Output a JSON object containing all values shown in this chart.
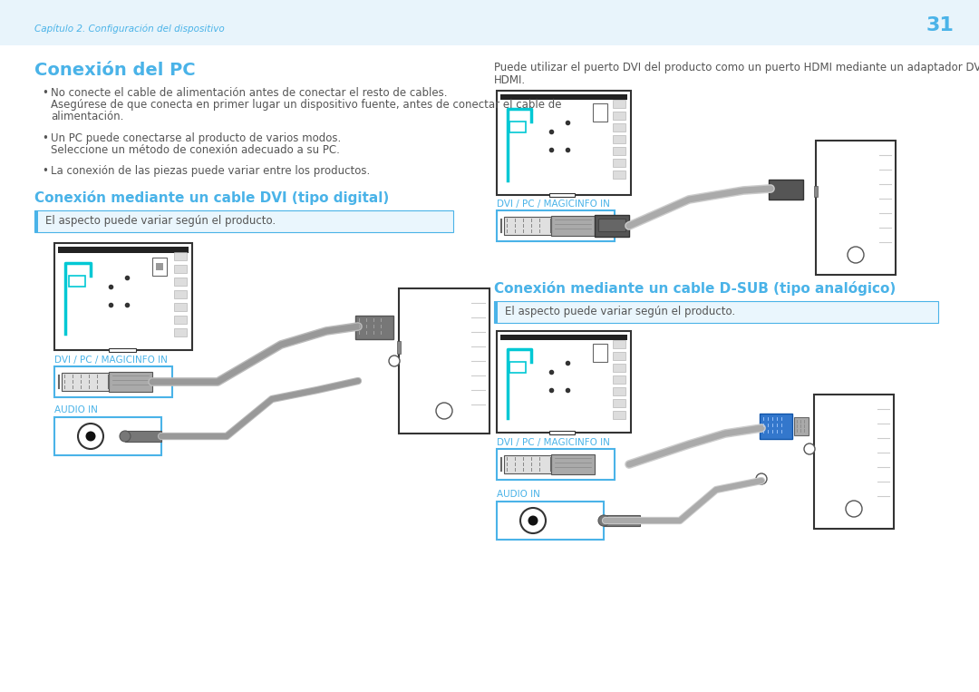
{
  "page_bg": "#ffffff",
  "header_bg": "#e8f4fb",
  "tc": "#4ab3e8",
  "bc": "#555555",
  "cc": "#4ab3e8",
  "header_chapter": "Capítulo 2. Configuración del dispositivo",
  "header_num": "31",
  "title_main": "Conexión del PC",
  "b1l1": "No conecte el cable de alimentación antes de conectar el resto de cables.",
  "b1l2": "Asegúrese de que conecta en primer lugar un dispositivo fuente, antes de conectar el cable de",
  "b1l3": "alimentación.",
  "b2l1": "Un PC puede conectarse al producto de varios modos.",
  "b2l2": "Seleccione un método de conexión adecuado a su PC.",
  "b3": "La conexión de las piezas puede variar entre los productos.",
  "sub1": "Conexión mediante un cable DVI (tipo digital)",
  "sub2": "Conexión mediante un cable D-SUB (tipo analógico)",
  "note": "El aspecto puede variar según el producto.",
  "lbl_dvi": "DVI / PC / MAGICINFO IN",
  "lbl_audio": "AUDIO IN",
  "rp1": "Puede utilizar el puerto DVI del producto como un puerto HDMI mediante un adaptador DVI-",
  "rp2": "HDMI.",
  "note_bg": "#eaf6fd",
  "note_border": "#4ab3e8",
  "gray_cable": "#aaaaaa",
  "dark_connector": "#666666",
  "light_connector": "#cccccc",
  "fs_body": 8.5,
  "fs_title": 14,
  "fs_sub": 11,
  "fs_label": 7.5
}
